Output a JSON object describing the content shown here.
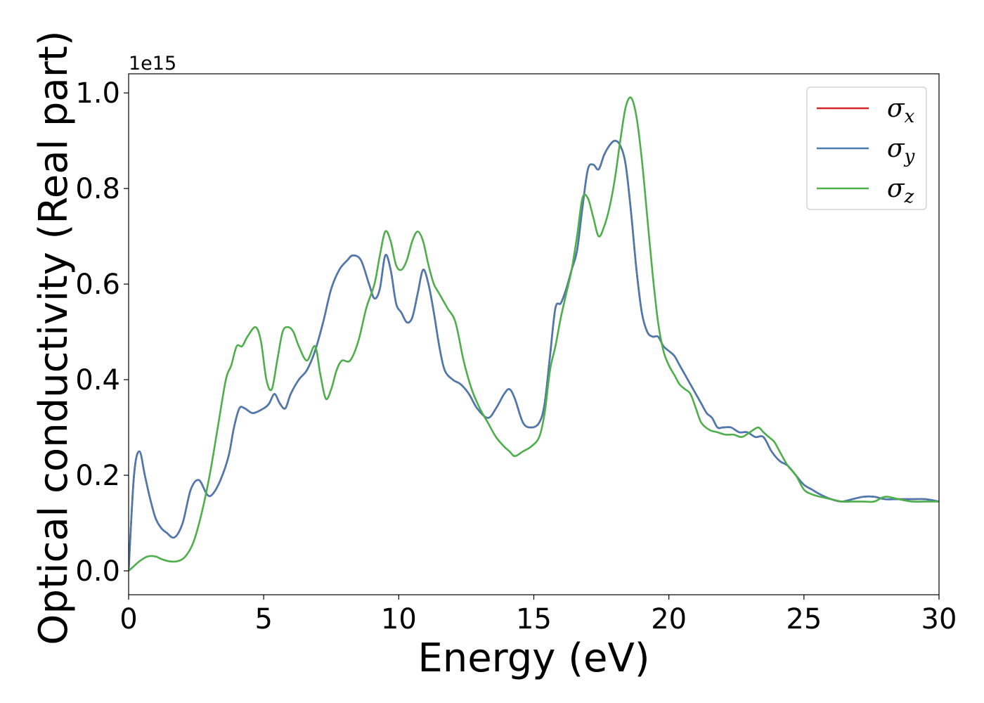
{
  "chart_data": {
    "type": "line",
    "title": "",
    "xlabel": "Energy (eV)",
    "ylabel": "Optical conductivity (Real part)",
    "y_offset_label": "1e15",
    "xlim": [
      0,
      30
    ],
    "ylim": [
      -0.05,
      1.04
    ],
    "xticks": [
      0,
      5,
      10,
      15,
      20,
      25,
      30
    ],
    "yticks": [
      0.0,
      0.2,
      0.4,
      0.6,
      0.8,
      1.0
    ],
    "xtick_labels": [
      "0",
      "5",
      "10",
      "15",
      "20",
      "25",
      "30"
    ],
    "ytick_labels": [
      "0.0",
      "0.2",
      "0.4",
      "0.6",
      "0.8",
      "1.0"
    ],
    "grid": false,
    "legend_position": "top-right",
    "series": [
      {
        "name": "σx",
        "label_base": "σ",
        "label_sub": "x",
        "color": "#d62728",
        "shares_data_with": "σy"
      },
      {
        "name": "σy",
        "label_base": "σ",
        "label_sub": "y",
        "color": "#4a7ab0",
        "x": [
          0,
          0.2,
          0.4,
          0.6,
          0.8,
          1.0,
          1.2,
          1.4,
          1.7,
          2.0,
          2.3,
          2.6,
          2.9,
          3.1,
          3.4,
          3.7,
          3.9,
          4.1,
          4.3,
          4.6,
          5.0,
          5.2,
          5.4,
          5.6,
          5.8,
          6.0,
          6.3,
          6.6,
          6.9,
          7.2,
          7.5,
          7.8,
          8.1,
          8.3,
          8.6,
          8.9,
          9.1,
          9.3,
          9.5,
          9.7,
          9.9,
          10.1,
          10.3,
          10.5,
          10.7,
          10.9,
          11.1,
          11.3,
          11.5,
          11.7,
          12.0,
          12.3,
          12.6,
          12.9,
          13.3,
          13.6,
          13.9,
          14.1,
          14.3,
          14.6,
          14.9,
          15.2,
          15.4,
          15.6,
          15.8,
          16.0,
          16.2,
          16.4,
          16.6,
          16.8,
          17.0,
          17.2,
          17.4,
          17.6,
          17.8,
          18.0,
          18.2,
          18.4,
          18.6,
          18.8,
          19.0,
          19.2,
          19.4,
          19.6,
          19.8,
          20.0,
          20.2,
          20.4,
          20.6,
          20.8,
          21.0,
          21.2,
          21.4,
          21.6,
          21.8,
          22.0,
          22.3,
          22.6,
          22.9,
          23.2,
          23.5,
          23.8,
          24.1,
          24.4,
          24.7,
          25.0,
          25.3,
          25.6,
          26.0,
          26.4,
          26.8,
          27.2,
          27.6,
          28.0,
          28.5,
          29.0,
          29.5,
          30.0
        ],
        "y": [
          0.0,
          0.2,
          0.25,
          0.2,
          0.15,
          0.11,
          0.09,
          0.08,
          0.07,
          0.1,
          0.17,
          0.19,
          0.16,
          0.16,
          0.19,
          0.24,
          0.3,
          0.34,
          0.34,
          0.33,
          0.34,
          0.35,
          0.37,
          0.35,
          0.34,
          0.37,
          0.4,
          0.42,
          0.46,
          0.52,
          0.59,
          0.63,
          0.65,
          0.66,
          0.65,
          0.6,
          0.57,
          0.59,
          0.66,
          0.63,
          0.56,
          0.54,
          0.52,
          0.53,
          0.58,
          0.63,
          0.6,
          0.54,
          0.47,
          0.42,
          0.4,
          0.39,
          0.37,
          0.34,
          0.32,
          0.34,
          0.37,
          0.38,
          0.36,
          0.31,
          0.3,
          0.31,
          0.35,
          0.45,
          0.55,
          0.56,
          0.59,
          0.63,
          0.67,
          0.76,
          0.84,
          0.85,
          0.84,
          0.87,
          0.89,
          0.9,
          0.89,
          0.85,
          0.75,
          0.63,
          0.54,
          0.5,
          0.49,
          0.49,
          0.47,
          0.46,
          0.45,
          0.43,
          0.41,
          0.39,
          0.37,
          0.35,
          0.33,
          0.32,
          0.3,
          0.3,
          0.3,
          0.29,
          0.29,
          0.28,
          0.28,
          0.25,
          0.23,
          0.22,
          0.2,
          0.18,
          0.17,
          0.16,
          0.15,
          0.145,
          0.15,
          0.155,
          0.155,
          0.15,
          0.15,
          0.15,
          0.15,
          0.145
        ]
      },
      {
        "name": "σz",
        "label_base": "σ",
        "label_sub": "z",
        "color": "#4daf4a",
        "x": [
          0,
          0.2,
          0.4,
          0.7,
          1.0,
          1.2,
          1.5,
          1.8,
          2.1,
          2.4,
          2.7,
          3.0,
          3.3,
          3.6,
          3.8,
          4.0,
          4.2,
          4.4,
          4.7,
          4.9,
          5.1,
          5.3,
          5.5,
          5.7,
          5.9,
          6.1,
          6.3,
          6.6,
          6.9,
          7.1,
          7.3,
          7.5,
          7.7,
          7.9,
          8.2,
          8.5,
          8.8,
          9.1,
          9.3,
          9.5,
          9.7,
          9.9,
          10.1,
          10.3,
          10.5,
          10.7,
          10.9,
          11.1,
          11.3,
          11.5,
          11.8,
          12.1,
          12.4,
          12.7,
          13.0,
          13.3,
          13.6,
          13.9,
          14.1,
          14.3,
          14.6,
          14.9,
          15.2,
          15.4,
          15.6,
          15.8,
          16.0,
          16.2,
          16.4,
          16.6,
          16.8,
          17.0,
          17.2,
          17.4,
          17.6,
          17.8,
          18.0,
          18.2,
          18.4,
          18.6,
          18.8,
          19.0,
          19.2,
          19.4,
          19.6,
          19.8,
          20.0,
          20.2,
          20.4,
          20.6,
          20.8,
          21.0,
          21.2,
          21.5,
          21.8,
          22.1,
          22.4,
          22.7,
          23.0,
          23.3,
          23.5,
          23.7,
          23.9,
          24.1,
          24.4,
          24.7,
          25.0,
          25.3,
          25.6,
          26.0,
          26.4,
          26.8,
          27.2,
          27.6,
          28.0,
          28.5,
          29.0,
          29.5,
          30.0
        ],
        "y": [
          0.0,
          0.01,
          0.02,
          0.03,
          0.03,
          0.025,
          0.02,
          0.02,
          0.03,
          0.06,
          0.12,
          0.2,
          0.3,
          0.4,
          0.43,
          0.47,
          0.47,
          0.49,
          0.51,
          0.48,
          0.4,
          0.38,
          0.44,
          0.5,
          0.51,
          0.5,
          0.47,
          0.44,
          0.47,
          0.41,
          0.36,
          0.38,
          0.42,
          0.44,
          0.44,
          0.48,
          0.55,
          0.6,
          0.66,
          0.71,
          0.69,
          0.64,
          0.63,
          0.65,
          0.69,
          0.71,
          0.69,
          0.64,
          0.6,
          0.58,
          0.55,
          0.52,
          0.44,
          0.38,
          0.34,
          0.31,
          0.28,
          0.26,
          0.25,
          0.24,
          0.25,
          0.26,
          0.28,
          0.33,
          0.42,
          0.47,
          0.53,
          0.58,
          0.63,
          0.7,
          0.78,
          0.78,
          0.74,
          0.7,
          0.72,
          0.76,
          0.82,
          0.9,
          0.97,
          0.99,
          0.95,
          0.86,
          0.74,
          0.62,
          0.52,
          0.46,
          0.43,
          0.41,
          0.39,
          0.38,
          0.37,
          0.34,
          0.31,
          0.295,
          0.29,
          0.285,
          0.285,
          0.28,
          0.29,
          0.3,
          0.29,
          0.28,
          0.27,
          0.25,
          0.22,
          0.2,
          0.17,
          0.16,
          0.155,
          0.15,
          0.145,
          0.145,
          0.145,
          0.145,
          0.155,
          0.15,
          0.145,
          0.145,
          0.145
        ]
      }
    ]
  }
}
